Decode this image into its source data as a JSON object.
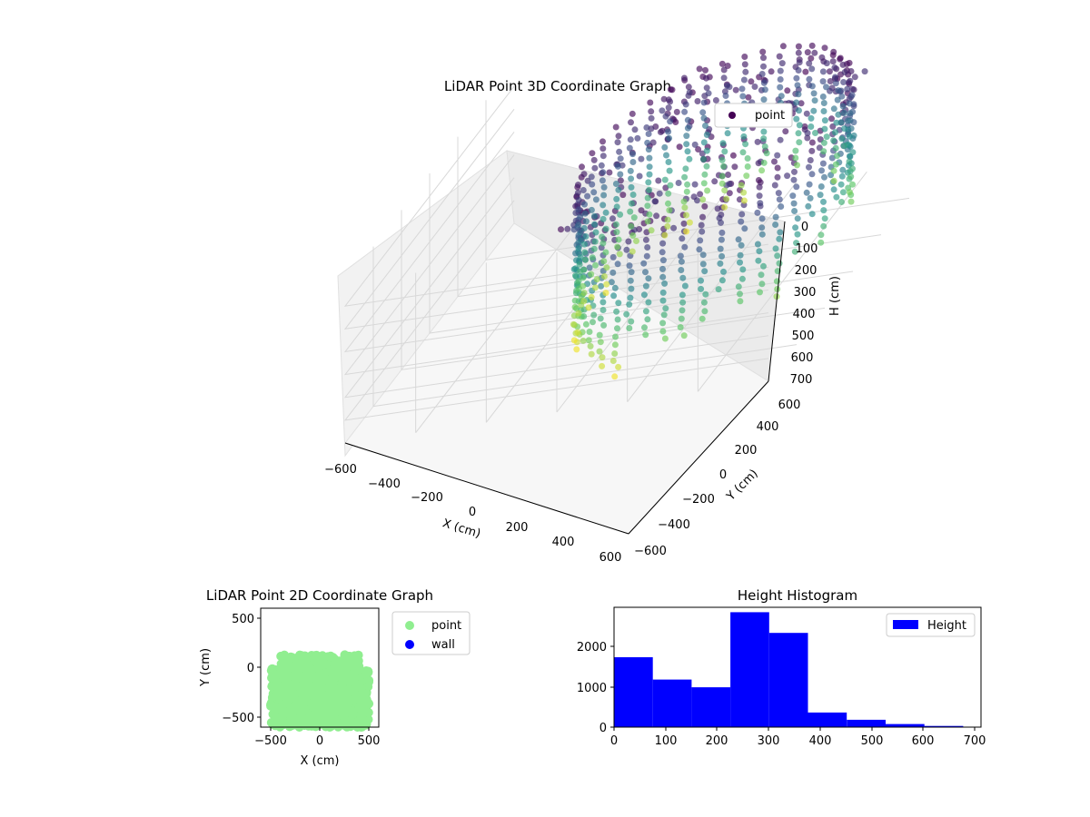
{
  "chart_data": [
    {
      "type": "scatter3d",
      "title": "LiDAR Point 3D Coordinate Graph",
      "xlabel": "X (cm)",
      "ylabel": "Y (cm)",
      "zlabel": "H (cm)",
      "xlim": [
        -600,
        600
      ],
      "ylim": [
        -600,
        600
      ],
      "zlim": [
        0,
        700
      ],
      "z_inverted": true,
      "colormap": "viridis",
      "x_ticks": [
        "−600",
        "−400",
        "−200",
        "0",
        "200",
        "400",
        "600"
      ],
      "y_ticks": [
        "−600",
        "−400",
        "−200",
        "0",
        "200",
        "400",
        "600"
      ],
      "z_ticks": [
        "0",
        "100",
        "200",
        "300",
        "400",
        "500",
        "600",
        "700"
      ],
      "legend": {
        "entries": [
          "point"
        ],
        "placement": "top-right"
      },
      "series": [
        {
          "name": "point",
          "description_shape": "ring of vertical pillars around a room boundary (x ≈ -500..500, y ≈ -550..130), heights 0..700 cm",
          "x_range": [
            -500,
            500
          ],
          "y_range": [
            -550,
            130
          ],
          "h_range": [
            0,
            700
          ]
        }
      ]
    },
    {
      "type": "scatter",
      "title": "LiDAR Point 2D Coordinate Graph",
      "xlabel": "X (cm)",
      "ylabel": "Y (cm)",
      "xlim": [
        -600,
        600
      ],
      "ylim": [
        -600,
        600
      ],
      "x_ticks": [
        "−500",
        "0",
        "500"
      ],
      "y_ticks": [
        "500",
        "0",
        "−500"
      ],
      "legend": {
        "entries": [
          "point",
          "wall"
        ],
        "placement": "outside-right"
      },
      "series": [
        {
          "name": "point",
          "color": "#90ee90",
          "x_range": [
            -500,
            500
          ],
          "y_range": [
            -600,
            130
          ]
        },
        {
          "name": "wall",
          "color": "#0000ff",
          "points": []
        }
      ]
    },
    {
      "type": "histogram",
      "title": "Height Histogram",
      "xlim": [
        0,
        700
      ],
      "ylim": [
        0,
        2950
      ],
      "x_ticks": [
        "0",
        "100",
        "200",
        "300",
        "400",
        "500",
        "600",
        "700"
      ],
      "y_ticks": [
        "0",
        "1000",
        "2000"
      ],
      "legend": {
        "entries": [
          "Height"
        ],
        "placement": "top-right"
      },
      "color": "#0000ff",
      "bin_edges": [
        0,
        74,
        148,
        222,
        296,
        370,
        444,
        518,
        592,
        666
      ],
      "counts": [
        1720,
        1170,
        980,
        2830,
        2320,
        360,
        180,
        75,
        30
      ]
    }
  ],
  "colors": {
    "hist_bar": "#0000ff",
    "point2d": "#90ee90",
    "wall": "#0000ff"
  }
}
